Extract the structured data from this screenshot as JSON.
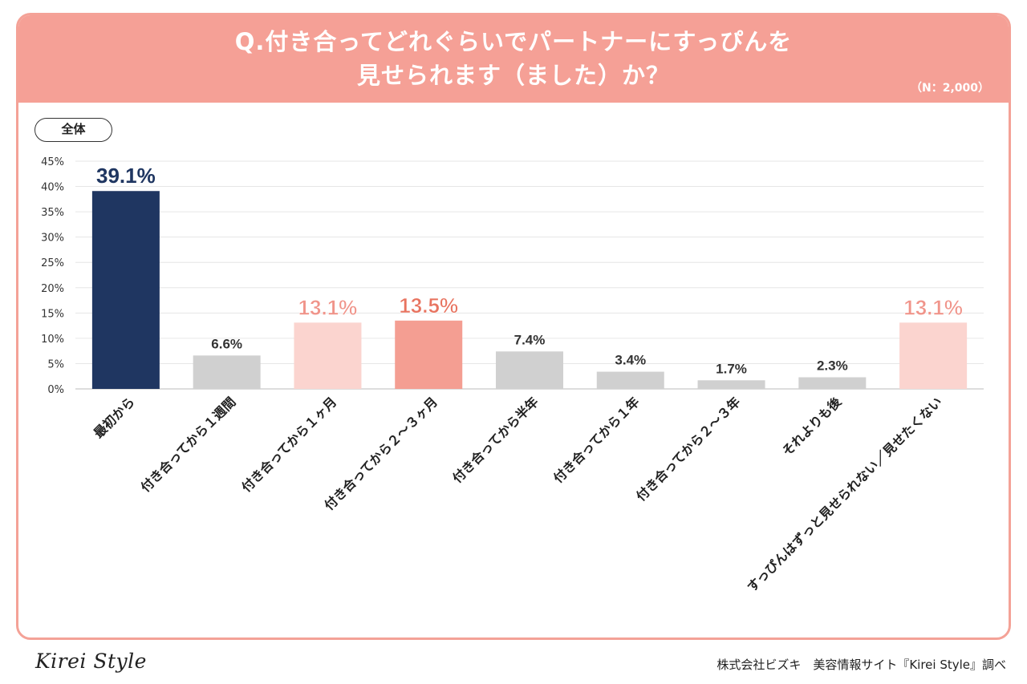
{
  "header": {
    "title_line1": "Q.付き合ってどれぐらいでパートナーにすっぴんを",
    "title_line2": "見せられます（ました）か？",
    "sample_size": "（N：2,000）"
  },
  "segment_label": "全体",
  "colors": {
    "header_bg": "#f5a096",
    "highlight_dark": "#1f3661",
    "highlight_salmon": "#f49e92",
    "highlight_pink": "#fbd4cf",
    "neutral_bar": "#d0d0d0"
  },
  "chart_data": {
    "type": "bar",
    "title": "Q.付き合ってどれぐらいでパートナーにすっぴんを見せられます（ました）か？",
    "categories": [
      "最初から",
      "付き合ってから１週間",
      "付き合ってから１ヶ月",
      "付き合ってから２〜３ヶ月",
      "付き合ってから半年",
      "付き合ってから１年",
      "付き合ってから２〜３年",
      "それよりも後",
      "すっぴんはずっと見せられない／見せたくない"
    ],
    "values": [
      39.1,
      6.6,
      13.1,
      13.5,
      7.4,
      3.4,
      1.7,
      2.3,
      13.1
    ],
    "value_labels": [
      "39.1%",
      "6.6%",
      "13.1%",
      "13.5%",
      "7.4%",
      "3.4%",
      "1.7%",
      "2.3%",
      "13.1%"
    ],
    "bar_colors": [
      "#1f3661",
      "#d0d0d0",
      "#fbd4cf",
      "#f49e92",
      "#d0d0d0",
      "#d0d0d0",
      "#d0d0d0",
      "#d0d0d0",
      "#fbd4cf"
    ],
    "label_colors": [
      "#1f3661",
      "#333333",
      "#f0948a",
      "#e8735f",
      "#333333",
      "#333333",
      "#333333",
      "#333333",
      "#f0948a"
    ],
    "label_emphasis": [
      true,
      false,
      true,
      true,
      false,
      false,
      false,
      false,
      true
    ],
    "yticks": [
      "0%",
      "5%",
      "10%",
      "15%",
      "20%",
      "25%",
      "30%",
      "35%",
      "40%",
      "45%"
    ],
    "ylim": [
      0,
      45
    ],
    "xlabel": "",
    "ylabel": "",
    "grid": true
  },
  "footer": {
    "logo": "Kirei Style",
    "credit": "株式会社ビズキ　美容情報サイト『Kirei Style』調べ"
  }
}
